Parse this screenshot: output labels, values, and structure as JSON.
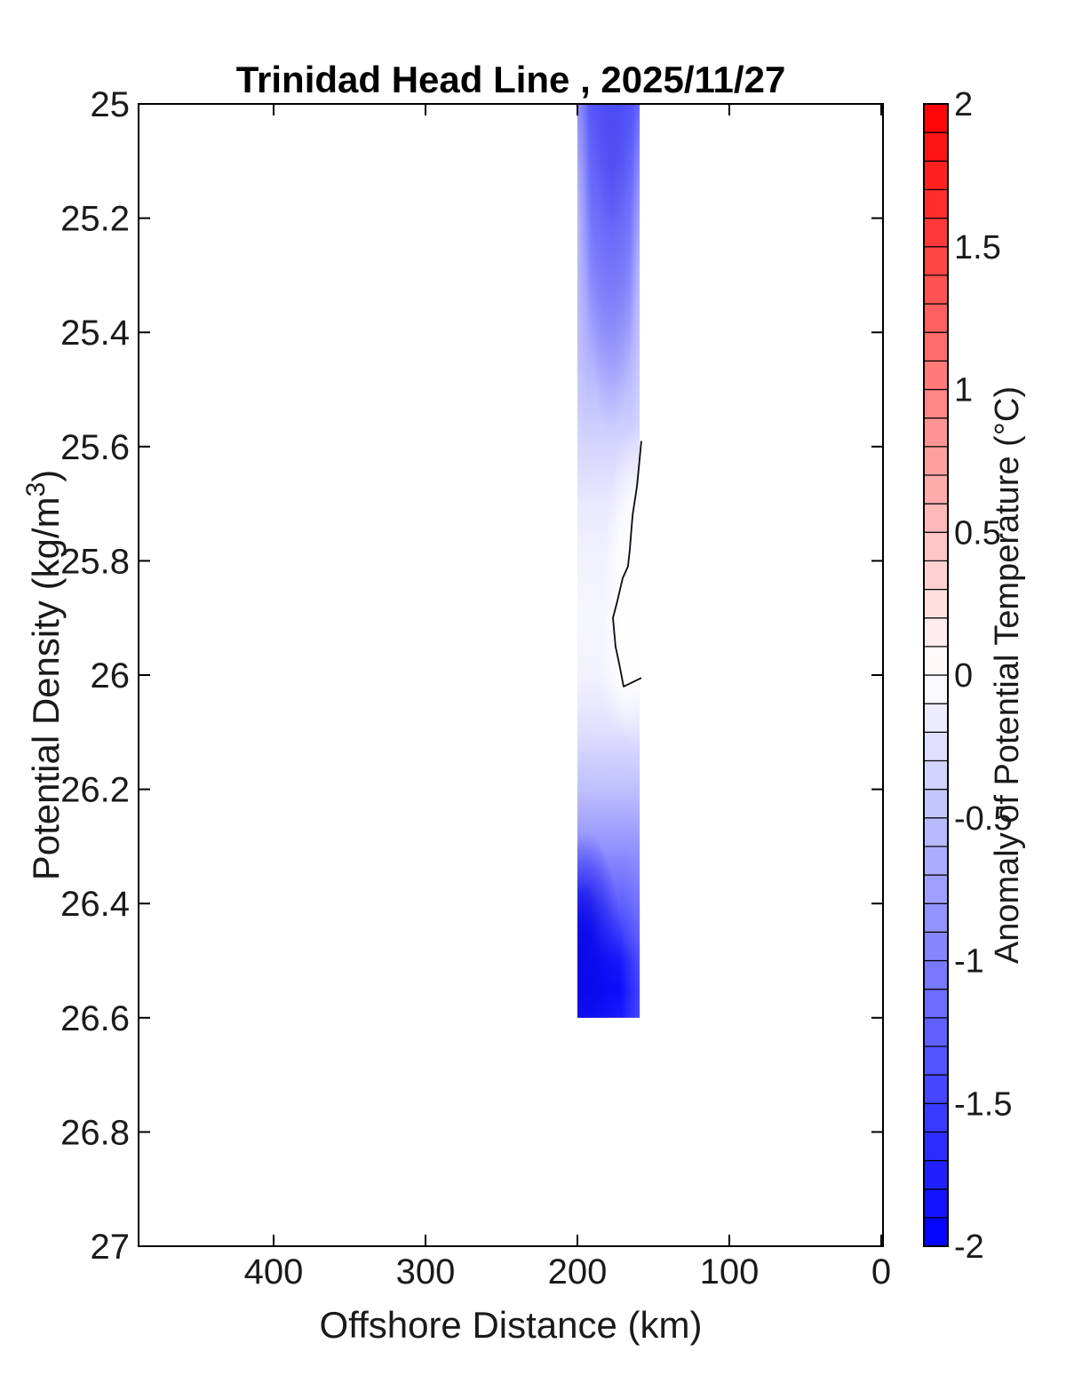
{
  "title": "Trinidad Head Line , 2025/11/27",
  "axes": {
    "xlabel": "Offshore Distance (km)",
    "ylabel": "Potential Density (kg/m³)",
    "ylabel_parts": {
      "main": "Potential Density (kg/m",
      "sup": "3",
      "close": ")"
    },
    "x_ticks": [
      {
        "value": 400,
        "label": "400"
      },
      {
        "value": 300,
        "label": "300"
      },
      {
        "value": 200,
        "label": "200"
      },
      {
        "value": 100,
        "label": "100"
      },
      {
        "value": 0,
        "label": "0"
      }
    ],
    "y_ticks": [
      {
        "value": 25,
        "label": "25"
      },
      {
        "value": 25.2,
        "label": "25.2"
      },
      {
        "value": 25.4,
        "label": "25.4"
      },
      {
        "value": 25.6,
        "label": "25.6"
      },
      {
        "value": 25.8,
        "label": "25.8"
      },
      {
        "value": 26,
        "label": "26"
      },
      {
        "value": 26.2,
        "label": "26.2"
      },
      {
        "value": 26.4,
        "label": "26.4"
      },
      {
        "value": 26.6,
        "label": "26.6"
      },
      {
        "value": 26.8,
        "label": "26.8"
      },
      {
        "value": 27,
        "label": "27"
      }
    ]
  },
  "colorbar": {
    "label": "Anomaly of Potential Temperature (°C)",
    "min": -2,
    "max": 2,
    "segment_step": 0.1,
    "ticks": [
      {
        "value": 2,
        "label": "2"
      },
      {
        "value": 1.5,
        "label": "1.5"
      },
      {
        "value": 1,
        "label": "1"
      },
      {
        "value": 0.5,
        "label": "0.5"
      },
      {
        "value": 0,
        "label": "0"
      },
      {
        "value": -0.5,
        "label": "-0.5"
      },
      {
        "value": -1,
        "label": "-1"
      },
      {
        "value": -1.5,
        "label": "-1.5"
      },
      {
        "value": -2,
        "label": "-2"
      }
    ],
    "colormap": {
      "positive_end": "#ff0000",
      "zero": "#ffffff",
      "negative_end": "#0000ff"
    }
  },
  "chart_data": {
    "type": "heatmap",
    "subtype": "filled-contour-section",
    "title": "Trinidad Head Line , 2025/11/27",
    "xlabel": "Offshore Distance (km)",
    "ylabel": "Potential Density (kg/m^3)",
    "x_range": [
      489,
      0
    ],
    "x_axis_reversed": true,
    "y_range": [
      25,
      27
    ],
    "y_axis_increases_downward": true,
    "grid": false,
    "colorbar_label": "Anomaly of Potential Temperature (°C)",
    "color_range": [
      -2,
      2
    ],
    "band": {
      "description": "Single vertical swath of negative temperature-anomaly data between ~200 km and ~159 km offshore, spanning potential density 25.0 to 26.6; cool (blue) near the surface densities, near-zero around 25.7-26.05, and strongly cool (to ~ -1.9 °C) near 26.5; no data elsewhere (white).",
      "x_extent_km": [
        200,
        159
      ],
      "density_extent": [
        25.0,
        26.6
      ],
      "anomaly_by_density": [
        {
          "density": 25.0,
          "value": -1.3
        },
        {
          "density": 25.1,
          "value": -1.15
        },
        {
          "density": 25.2,
          "value": -1.0
        },
        {
          "density": 25.3,
          "value": -0.85
        },
        {
          "density": 25.4,
          "value": -0.68
        },
        {
          "density": 25.5,
          "value": -0.5
        },
        {
          "density": 25.6,
          "value": -0.33
        },
        {
          "density": 25.7,
          "value": -0.18
        },
        {
          "density": 25.8,
          "value": -0.1
        },
        {
          "density": 25.9,
          "value": -0.07
        },
        {
          "density": 26.0,
          "value": -0.1
        },
        {
          "density": 26.1,
          "value": -0.25
        },
        {
          "density": 26.2,
          "value": -0.5
        },
        {
          "density": 26.3,
          "value": -0.85
        },
        {
          "density": 26.4,
          "value": -1.25
        },
        {
          "density": 26.45,
          "value": -1.5
        },
        {
          "density": 26.5,
          "value": -1.8
        },
        {
          "density": 26.55,
          "value": -1.9
        },
        {
          "density": 26.6,
          "value": -1.8
        }
      ]
    },
    "zero_contour": [
      {
        "km": 157.9,
        "density": 25.59
      },
      {
        "km": 160.8,
        "density": 25.67
      },
      {
        "km": 163.7,
        "density": 25.72
      },
      {
        "km": 165.5,
        "density": 25.78
      },
      {
        "km": 166.7,
        "density": 25.81
      },
      {
        "km": 170.2,
        "density": 25.83
      },
      {
        "km": 173.7,
        "density": 25.87
      },
      {
        "km": 176.6,
        "density": 25.9
      },
      {
        "km": 174.9,
        "density": 25.95
      },
      {
        "km": 172.5,
        "density": 25.98
      },
      {
        "km": 169.6,
        "density": 26.02
      },
      {
        "km": 157.9,
        "density": 26.005
      }
    ]
  }
}
